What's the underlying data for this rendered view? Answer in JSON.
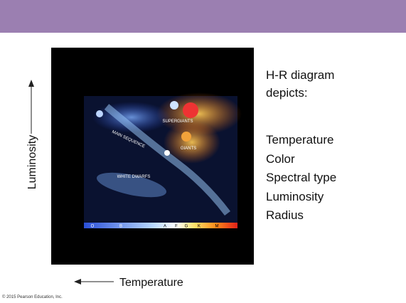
{
  "slide": {
    "heading": [
      "H-R diagram",
      "depicts:"
    ],
    "items": [
      "Temperature",
      "Color",
      "Spectral type",
      "Luminosity",
      "Radius"
    ],
    "y_axis_label": "Luminosity",
    "x_axis_label": "Temperature",
    "copyright": "© 2015 Pearson Education, Inc.",
    "figure": {
      "regions": [
        "SUPERGIANTS",
        "GIANTS",
        "MAIN SEQUENCE",
        "WHITE DWARFS"
      ],
      "spectral_types": [
        "O",
        "B",
        "A",
        "F",
        "G",
        "K",
        "M"
      ]
    }
  }
}
